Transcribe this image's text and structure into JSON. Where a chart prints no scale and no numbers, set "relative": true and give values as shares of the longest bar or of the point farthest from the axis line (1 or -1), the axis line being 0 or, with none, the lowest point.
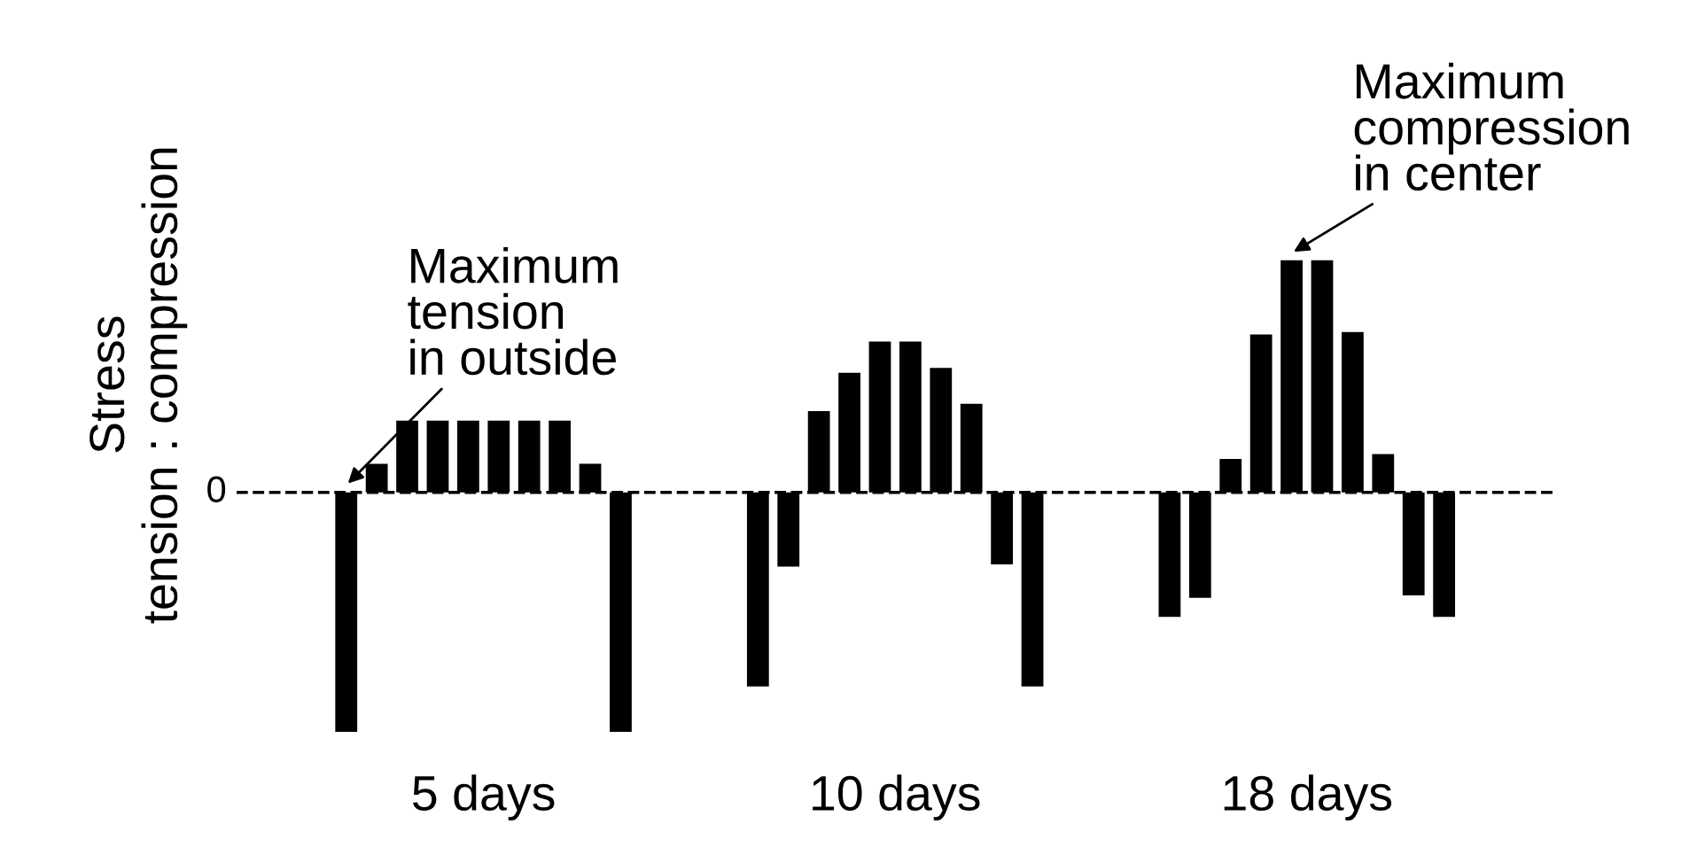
{
  "chart_data": {
    "type": "bar",
    "relative": true,
    "categories": [
      "5 days",
      "10 days",
      "18 days"
    ],
    "series": [
      {
        "color": "#000000",
        "values": [
          -1,
          -0.81,
          -0.52
        ]
      },
      {
        "color": "#000000",
        "values": [
          0.12,
          -0.31,
          -0.44
        ]
      },
      {
        "color": "#000000",
        "values": [
          0.3,
          0.34,
          0.14
        ]
      },
      {
        "color": "#000000",
        "values": [
          0.3,
          0.5,
          0.66
        ]
      },
      {
        "color": "#000000",
        "values": [
          0.3,
          0.63,
          0.97
        ]
      },
      {
        "color": "#000000",
        "values": [
          0.3,
          0.63,
          0.97
        ]
      },
      {
        "color": "#000000",
        "values": [
          0.3,
          0.52,
          0.67
        ]
      },
      {
        "color": "#000000",
        "values": [
          0.3,
          0.37,
          0.16
        ]
      },
      {
        "color": "#000000",
        "values": [
          0.12,
          -0.3,
          -0.43
        ]
      },
      {
        "color": "#000000",
        "values": [
          -1,
          -0.81,
          -0.52
        ]
      }
    ],
    "ylabel": "Stress\ntension : compression",
    "tick_labels": "x",
    "grid": false,
    "legend": false,
    "ref_lines": [
      {
        "axis": "y",
        "value": 0,
        "label": "0",
        "line_style": "dashed",
        "color": "#000000"
      }
    ],
    "annotations": [
      "Maximum\ntension\nin outside",
      "Maximum\ncompression\nin center"
    ]
  }
}
